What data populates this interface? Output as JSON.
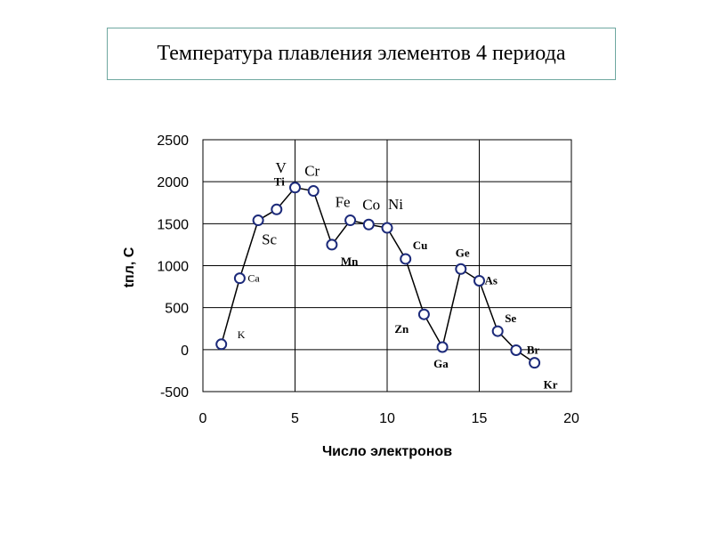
{
  "title": "Температура плавления элементов 4 периода",
  "chart_data": {
    "type": "line",
    "xlabel": "Число электронов",
    "ylabel": "tпл, С",
    "xlim": [
      0,
      20
    ],
    "ylim": [
      -500,
      2500
    ],
    "xticks": [
      0,
      5,
      10,
      15,
      20
    ],
    "yticks": [
      -500,
      0,
      500,
      1000,
      1500,
      2000,
      2500
    ],
    "grid": true,
    "series": [
      {
        "points": [
          {
            "x": 1,
            "y": 64,
            "label": "K"
          },
          {
            "x": 2,
            "y": 850,
            "label": "Ca"
          },
          {
            "x": 3,
            "y": 1540,
            "label": "Sc"
          },
          {
            "x": 4,
            "y": 1670,
            "label": "Ti"
          },
          {
            "x": 5,
            "y": 1930,
            "label": "V"
          },
          {
            "x": 6,
            "y": 1890,
            "label": "Cr"
          },
          {
            "x": 7,
            "y": 1250,
            "label": "Mn"
          },
          {
            "x": 8,
            "y": 1540,
            "label": "Fe"
          },
          {
            "x": 9,
            "y": 1490,
            "label": "Co"
          },
          {
            "x": 10,
            "y": 1450,
            "label": "Ni"
          },
          {
            "x": 11,
            "y": 1080,
            "label": "Cu"
          },
          {
            "x": 12,
            "y": 420,
            "label": "Zn"
          },
          {
            "x": 13,
            "y": 30,
            "label": "Ga"
          },
          {
            "x": 14,
            "y": 960,
            "label": "Ge"
          },
          {
            "x": 15,
            "y": 820,
            "label": "As"
          },
          {
            "x": 16,
            "y": 220,
            "label": "Se"
          },
          {
            "x": 17,
            "y": -7,
            "label": "Br"
          },
          {
            "x": 18,
            "y": -157,
            "label": "Kr"
          }
        ]
      }
    ]
  }
}
